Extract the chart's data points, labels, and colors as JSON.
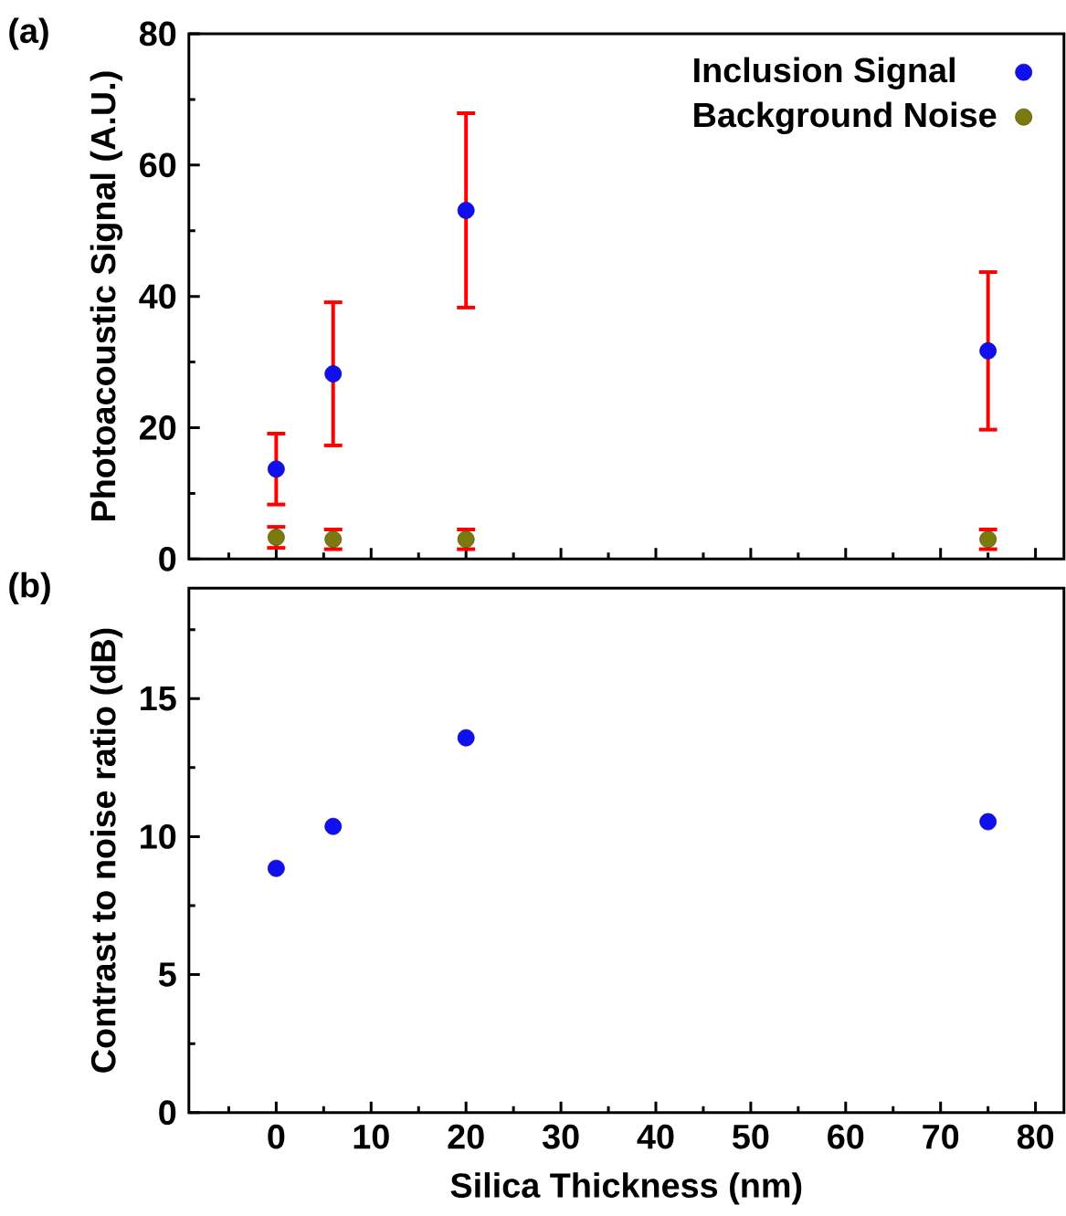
{
  "chart_data": [
    {
      "type": "scatter",
      "ylabel": "Photoacoustic Signal (A.U.)",
      "annotations": [
        "(a)"
      ],
      "x": [
        0,
        6,
        20,
        75
      ],
      "xlim": [
        -9.2,
        83
      ],
      "ylim": [
        0,
        80
      ],
      "xticks": [
        {
          "value": -5,
          "label": null
        },
        0,
        {
          "value": 5,
          "label": null
        },
        10,
        {
          "value": 15,
          "label": null
        },
        20,
        {
          "value": 25,
          "label": null
        },
        30,
        {
          "value": 35,
          "label": null
        },
        40,
        {
          "value": 45,
          "label": null
        },
        50,
        {
          "value": 55,
          "label": null
        },
        60,
        {
          "value": 65,
          "label": null
        },
        70,
        {
          "value": 75,
          "label": null
        },
        80
      ],
      "yticks": [
        0,
        {
          "value": 10,
          "label": null
        },
        20,
        {
          "value": 30,
          "label": null
        },
        40,
        {
          "value": 50,
          "label": null
        },
        60,
        {
          "value": 70,
          "label": null
        },
        80
      ],
      "tick_labels": "y",
      "legend": "top right",
      "marker": "circle",
      "series": [
        {
          "name": "Inclusion Signal",
          "color": "#1010ee",
          "values": [
            13.7,
            28.2,
            53.1,
            31.7
          ],
          "errors": [
            5.4,
            10.9,
            14.8,
            12.0
          ]
        },
        {
          "name": "Background Noise",
          "color": "#7a7a10",
          "values": [
            3.3,
            3.0,
            3.0,
            3.0
          ],
          "errors": [
            1.6,
            1.5,
            1.5,
            1.5
          ]
        }
      ]
    },
    {
      "type": "scatter",
      "xlabel": "Silica Thickness (nm)",
      "ylabel": "Contrast to noise ratio (dB)",
      "annotations": [
        "(b)"
      ],
      "x": [
        0,
        6,
        20,
        75
      ],
      "xlim": [
        -9.2,
        83
      ],
      "ylim": [
        0,
        19
      ],
      "xticks": [
        {
          "value": -5,
          "label": null
        },
        0,
        {
          "value": 5,
          "label": null
        },
        10,
        {
          "value": 15,
          "label": null
        },
        20,
        {
          "value": 25,
          "label": null
        },
        30,
        {
          "value": 35,
          "label": null
        },
        40,
        {
          "value": 45,
          "label": null
        },
        50,
        {
          "value": 55,
          "label": null
        },
        60,
        {
          "value": 65,
          "label": null
        },
        70,
        {
          "value": 75,
          "label": null
        },
        80
      ],
      "yticks": [
        0,
        {
          "value": 2.5,
          "label": null
        },
        5,
        {
          "value": 7.5,
          "label": null
        },
        10,
        {
          "value": 12.5,
          "label": null
        },
        15,
        {
          "value": 17.5,
          "label": null
        }
      ],
      "marker": "circle",
      "series": [
        {
          "color": "#1010ee",
          "values": [
            8.85,
            10.37,
            13.58,
            10.54
          ]
        }
      ]
    }
  ]
}
